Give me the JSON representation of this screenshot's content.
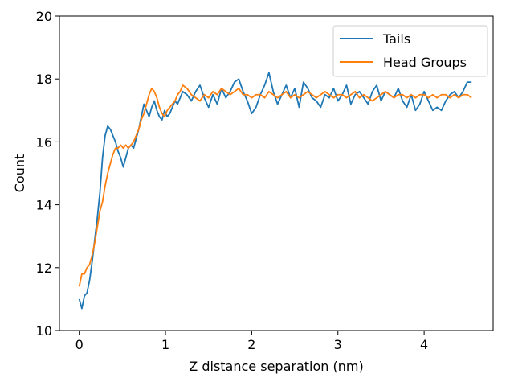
{
  "chart_data": {
    "type": "line",
    "title": "",
    "xlabel": "Z distance separation (nm)",
    "ylabel": "Count",
    "xlim": [
      -0.23,
      4.8
    ],
    "ylim": [
      10,
      20
    ],
    "xticks": [
      0,
      1,
      2,
      3,
      4
    ],
    "yticks": [
      10,
      12,
      14,
      16,
      18,
      20
    ],
    "grid": false,
    "legend": "upper-right",
    "series": [
      {
        "name": "Tails",
        "color": "#1f77b4",
        "x": [
          0.0,
          0.03,
          0.06,
          0.09,
          0.12,
          0.15,
          0.18,
          0.21,
          0.24,
          0.27,
          0.3,
          0.33,
          0.36,
          0.39,
          0.42,
          0.45,
          0.48,
          0.51,
          0.54,
          0.57,
          0.6,
          0.63,
          0.66,
          0.69,
          0.72,
          0.75,
          0.78,
          0.81,
          0.84,
          0.87,
          0.9,
          0.93,
          0.96,
          0.99,
          1.02,
          1.05,
          1.08,
          1.11,
          1.14,
          1.17,
          1.2,
          1.25,
          1.3,
          1.35,
          1.4,
          1.45,
          1.5,
          1.55,
          1.6,
          1.65,
          1.7,
          1.75,
          1.8,
          1.85,
          1.9,
          1.95,
          2.0,
          2.05,
          2.1,
          2.15,
          2.2,
          2.25,
          2.3,
          2.35,
          2.4,
          2.45,
          2.5,
          2.55,
          2.6,
          2.65,
          2.7,
          2.75,
          2.8,
          2.85,
          2.9,
          2.95,
          3.0,
          3.05,
          3.1,
          3.15,
          3.2,
          3.25,
          3.3,
          3.35,
          3.4,
          3.45,
          3.5,
          3.55,
          3.6,
          3.65,
          3.7,
          3.75,
          3.8,
          3.85,
          3.9,
          3.95,
          4.0,
          4.05,
          4.1,
          4.15,
          4.2,
          4.25,
          4.3,
          4.35,
          4.4,
          4.45,
          4.5,
          4.55
        ],
        "values": [
          11.0,
          10.7,
          11.1,
          11.2,
          11.6,
          12.2,
          12.9,
          13.6,
          14.4,
          15.5,
          16.2,
          16.5,
          16.4,
          16.2,
          16.0,
          15.7,
          15.5,
          15.2,
          15.5,
          15.8,
          15.9,
          15.8,
          16.1,
          16.4,
          16.8,
          17.2,
          17.0,
          16.8,
          17.1,
          17.3,
          17.0,
          16.8,
          16.7,
          17.0,
          16.8,
          16.9,
          17.1,
          17.3,
          17.2,
          17.4,
          17.6,
          17.5,
          17.3,
          17.6,
          17.8,
          17.4,
          17.1,
          17.5,
          17.2,
          17.7,
          17.4,
          17.6,
          17.9,
          18.0,
          17.6,
          17.3,
          16.9,
          17.1,
          17.5,
          17.8,
          18.2,
          17.6,
          17.2,
          17.5,
          17.8,
          17.4,
          17.7,
          17.1,
          17.9,
          17.7,
          17.4,
          17.3,
          17.1,
          17.5,
          17.4,
          17.7,
          17.3,
          17.5,
          17.8,
          17.2,
          17.5,
          17.6,
          17.4,
          17.2,
          17.6,
          17.8,
          17.3,
          17.6,
          17.5,
          17.4,
          17.7,
          17.3,
          17.1,
          17.5,
          17.0,
          17.2,
          17.6,
          17.3,
          17.0,
          17.1,
          17.0,
          17.3,
          17.5,
          17.6,
          17.4,
          17.6,
          17.9,
          17.9
        ]
      },
      {
        "name": "Head Groups",
        "color": "#ff7f0e",
        "x": [
          0.0,
          0.03,
          0.06,
          0.09,
          0.12,
          0.15,
          0.18,
          0.21,
          0.24,
          0.27,
          0.3,
          0.33,
          0.36,
          0.39,
          0.42,
          0.45,
          0.48,
          0.51,
          0.54,
          0.57,
          0.6,
          0.63,
          0.66,
          0.69,
          0.72,
          0.75,
          0.78,
          0.81,
          0.84,
          0.87,
          0.9,
          0.93,
          0.96,
          0.99,
          1.02,
          1.05,
          1.08,
          1.11,
          1.14,
          1.17,
          1.2,
          1.25,
          1.3,
          1.35,
          1.4,
          1.45,
          1.5,
          1.55,
          1.6,
          1.65,
          1.7,
          1.75,
          1.8,
          1.85,
          1.9,
          1.95,
          2.0,
          2.05,
          2.1,
          2.15,
          2.2,
          2.25,
          2.3,
          2.35,
          2.4,
          2.45,
          2.5,
          2.55,
          2.6,
          2.65,
          2.7,
          2.75,
          2.8,
          2.85,
          2.9,
          2.95,
          3.0,
          3.05,
          3.1,
          3.15,
          3.2,
          3.25,
          3.3,
          3.35,
          3.4,
          3.45,
          3.5,
          3.55,
          3.6,
          3.65,
          3.7,
          3.75,
          3.8,
          3.85,
          3.9,
          3.95,
          4.0,
          4.05,
          4.1,
          4.15,
          4.2,
          4.25,
          4.3,
          4.35,
          4.4,
          4.45,
          4.5,
          4.55
        ],
        "values": [
          11.4,
          11.8,
          11.8,
          12.0,
          12.1,
          12.4,
          12.8,
          13.3,
          13.8,
          14.1,
          14.6,
          15.0,
          15.3,
          15.6,
          15.8,
          15.8,
          15.9,
          15.8,
          15.9,
          15.8,
          15.9,
          16.0,
          16.2,
          16.4,
          16.7,
          16.9,
          17.2,
          17.5,
          17.7,
          17.6,
          17.4,
          17.1,
          16.9,
          16.8,
          17.0,
          17.1,
          17.2,
          17.3,
          17.5,
          17.6,
          17.8,
          17.7,
          17.5,
          17.4,
          17.3,
          17.5,
          17.4,
          17.6,
          17.5,
          17.7,
          17.6,
          17.5,
          17.6,
          17.7,
          17.5,
          17.5,
          17.4,
          17.5,
          17.5,
          17.4,
          17.6,
          17.5,
          17.4,
          17.5,
          17.6,
          17.4,
          17.5,
          17.4,
          17.5,
          17.6,
          17.5,
          17.4,
          17.5,
          17.6,
          17.5,
          17.4,
          17.5,
          17.5,
          17.4,
          17.5,
          17.6,
          17.4,
          17.5,
          17.4,
          17.3,
          17.4,
          17.5,
          17.6,
          17.5,
          17.4,
          17.5,
          17.5,
          17.4,
          17.5,
          17.4,
          17.5,
          17.5,
          17.4,
          17.5,
          17.4,
          17.5,
          17.5,
          17.4,
          17.5,
          17.4,
          17.5,
          17.5,
          17.4
        ]
      }
    ]
  }
}
